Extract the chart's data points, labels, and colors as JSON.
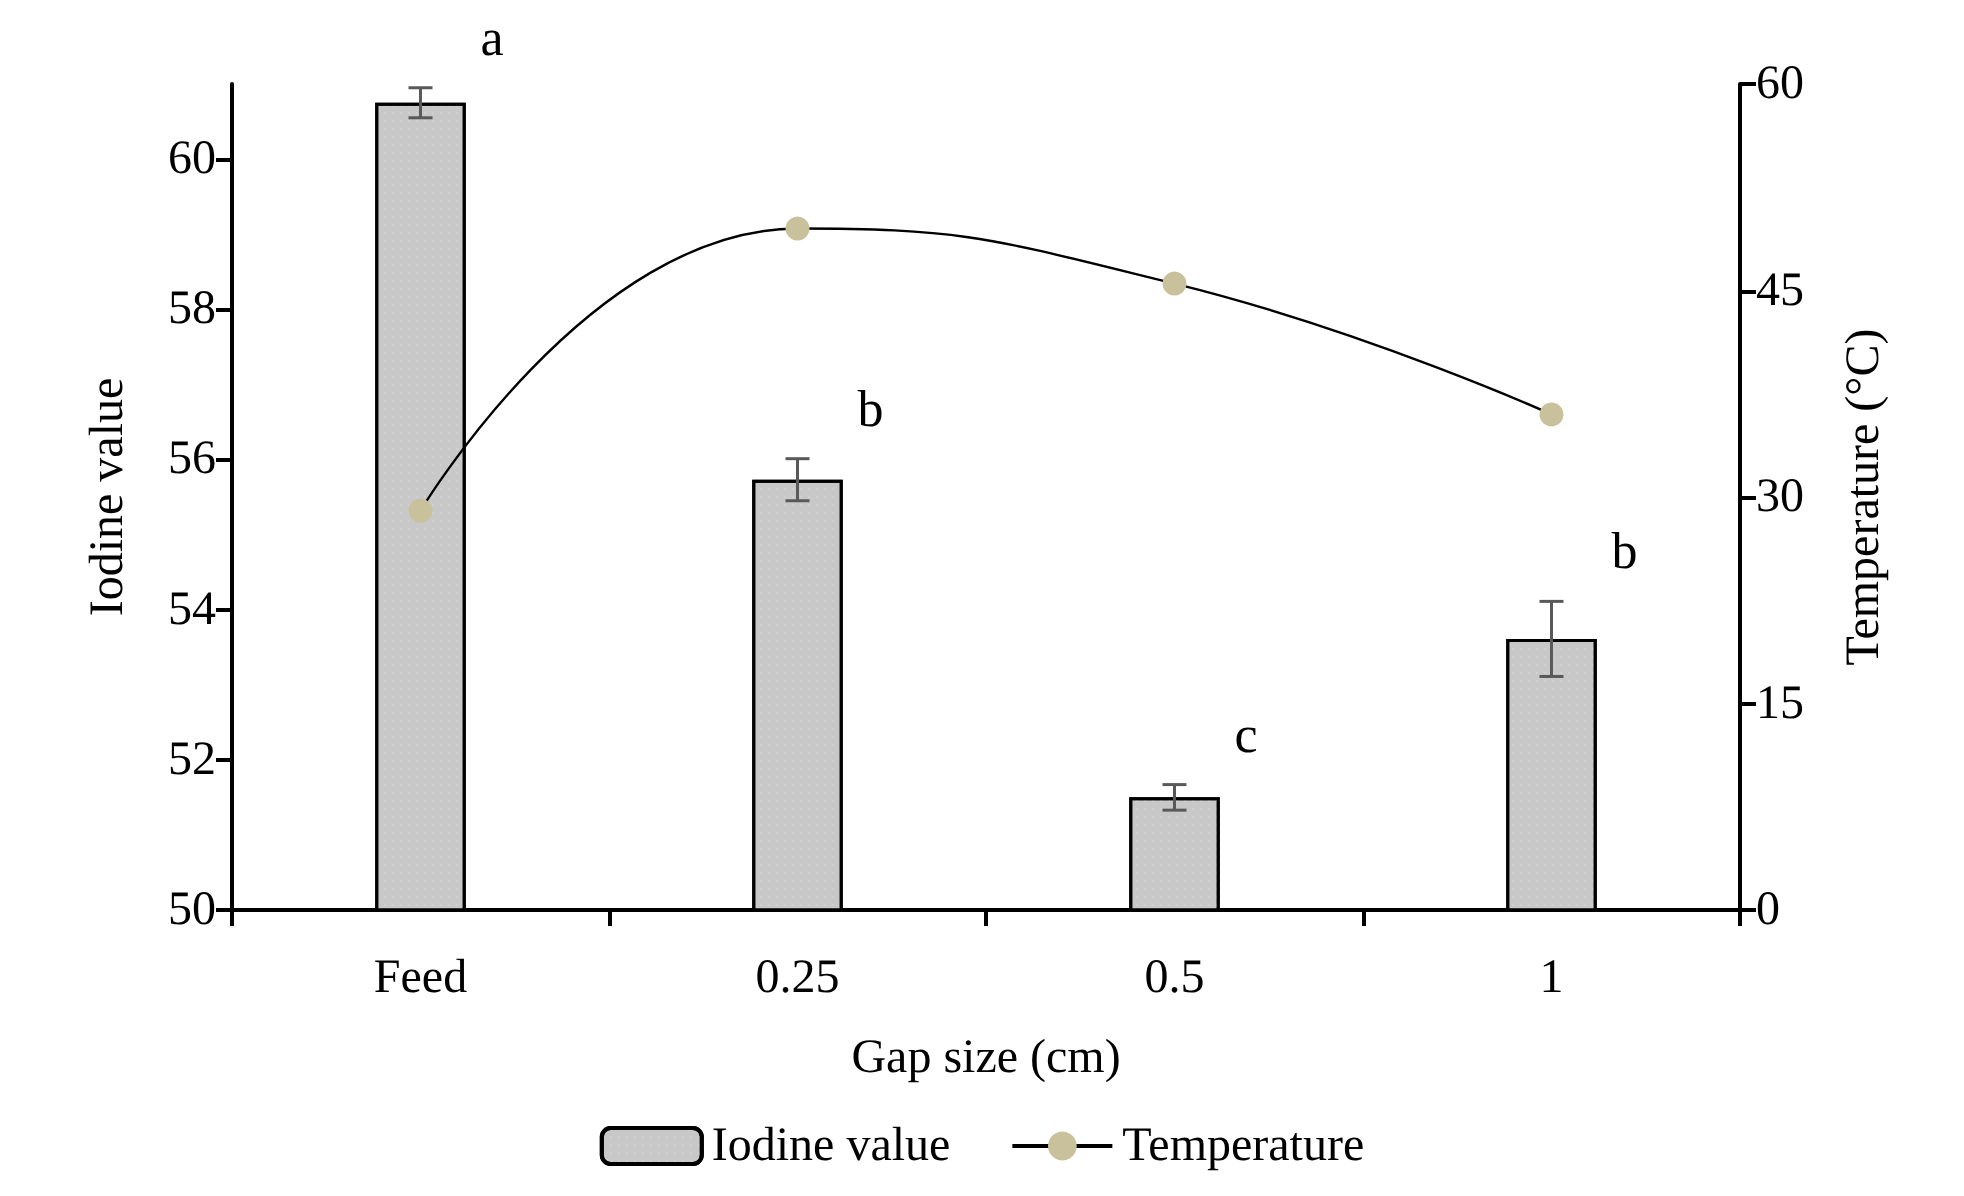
{
  "chart_data": {
    "type": "bar",
    "xlabel": "Gap size (cm)",
    "ylabel": "Iodine value",
    "y2label": "Temperature (°C)",
    "categories": [
      "Feed",
      "0.25",
      "0.5",
      "1"
    ],
    "series": [
      {
        "name": "Iodine value",
        "color": "#c8c8c8",
        "values": [
          60.75,
          55.73,
          51.5,
          53.61
        ],
        "errors": [
          0.2,
          0.28,
          0.17,
          0.5
        ]
      },
      {
        "name": "Temperature",
        "type": "line",
        "axis": "y2",
        "color": "#c9c19b",
        "values": [
          29.0,
          49.5,
          45.5,
          36.0
        ]
      }
    ],
    "ylim": [
      50,
      61
    ],
    "yticks": [
      50,
      52,
      54,
      56,
      58,
      60
    ],
    "y2lim": [
      0,
      60
    ],
    "y2ticks": [
      0,
      15,
      30,
      45,
      60
    ],
    "annotations": [
      {
        "text": "a",
        "x": "Feed",
        "y": 60.95
      },
      {
        "text": "b",
        "x": "0.25",
        "y": 56.01
      },
      {
        "text": "c",
        "x": "0.5",
        "y": 51.67
      },
      {
        "text": "b",
        "x": "1",
        "y": 54.12
      }
    ],
    "legend": "bottom",
    "marker": "circle",
    "grid": false
  }
}
